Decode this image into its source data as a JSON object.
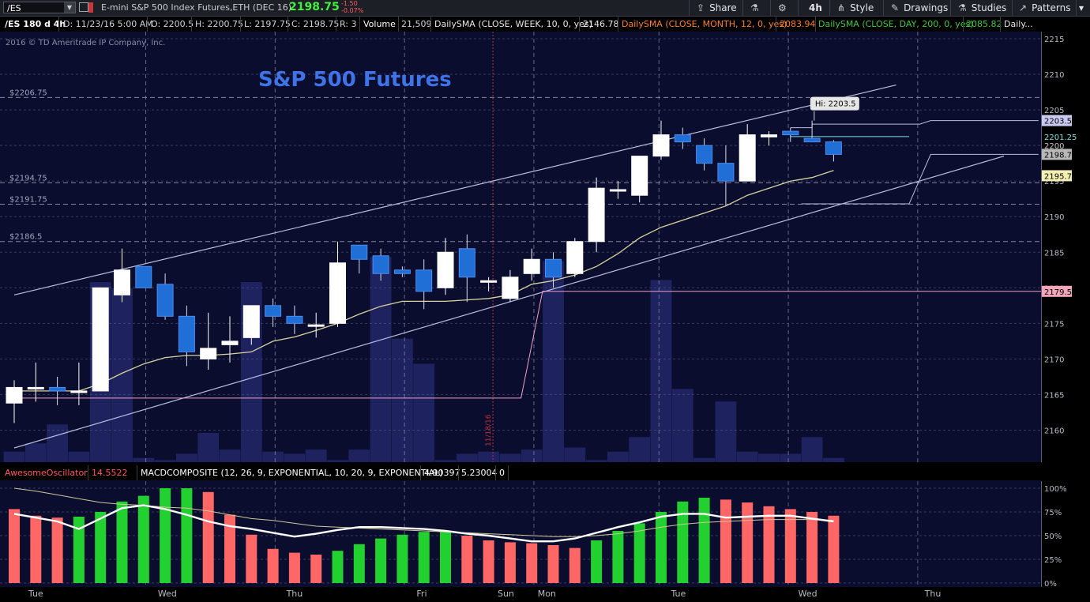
{
  "toolbar": {
    "symbol": "/ES",
    "description": "E-mini S&P 500 Index Futures,ETH (DEC 16)",
    "last": "2198.75",
    "change": "-1.50",
    "change_pct": "-0.07%",
    "share": "Share",
    "timeframe": "4h",
    "style": "Style",
    "drawings": "Drawings",
    "studies": "Studies",
    "patterns": "Patterns"
  },
  "infobar": {
    "chart_id": "/ES 180 d 4h",
    "date": "D: 11/23/16 5:00 AM",
    "open": "O: 2200.5",
    "high": "H: 2200.75",
    "low": "L: 2197.75",
    "close": "C: 2198.75",
    "range": "R: 3",
    "volume_label": "Volume",
    "volume_value": "21,509",
    "sma_week_label": "DailySMA (CLOSE, WEEK, 10, 0, yes)",
    "sma_week_value": "2146.78",
    "sma_month_label": "DailySMA (CLOSE, MONTH, 12, 0, yes)",
    "sma_month_value": "2083.94",
    "sma_day_label": "DailySMA (CLOSE, DAY, 200, 0, yes)",
    "sma_day_value": "2085.82",
    "more": "Daily..."
  },
  "colors": {
    "background": "#0b0d2e",
    "bull": "#ffffff",
    "bear": "#1f6fd6",
    "volume": "#1e2360",
    "sma_ma": "#d8d4a0",
    "channel": "#b9bde0",
    "pink_line": "#f0a0c8",
    "ao_up": "#22d030",
    "ao_down": "#ff6666",
    "grid": "#5b5f7c"
  },
  "chart_data": [
    {
      "type": "candlestick",
      "title": "S&P 500 Futures",
      "copyright": "2016 © TD Ameritrade IP Company, Inc.",
      "ylim": [
        2155.5,
        2216
      ],
      "y_ticks": [
        2160,
        2165,
        2170,
        2175,
        2180,
        2185,
        2190,
        2195,
        2200,
        2205,
        2210,
        2215
      ],
      "x_labels": [
        "Tue",
        "Wed",
        "Thu",
        "Fri",
        "Sun",
        "Mon",
        "Tue",
        "Wed",
        "Thu"
      ],
      "x_label_bars": [
        1.0,
        7.1,
        13.0,
        18.9,
        22.8,
        24.7,
        30.8,
        36.8,
        42.6
      ],
      "day_separators": [
        6.1,
        12.1,
        18.1,
        24.1,
        29.9,
        35.9,
        41.9
      ],
      "date_marker": {
        "label": "11/18/16",
        "bar": 22.2
      },
      "levels": [
        {
          "label": "$2206.75",
          "value": 2206.75
        },
        {
          "label": "$2194.75",
          "value": 2194.75
        },
        {
          "label": "$2191.75",
          "value": 2191.75
        },
        {
          "label": "$2186.5",
          "value": 2186.5
        }
      ],
      "price_tags": [
        {
          "label": "2203.5",
          "value": 2203.5,
          "bg": "#c9c9f2",
          "fg": "#000000"
        },
        {
          "label": "2201.25",
          "value": 2201.25,
          "bg": "#000000",
          "fg": "#7fe0e0"
        },
        {
          "label": "2200",
          "value": 2200.0,
          "bg": "#000000",
          "fg": "#c8c8c8"
        },
        {
          "label": "2198.75",
          "value": 2198.75,
          "bg": "#b8b8b8",
          "fg": "#000000"
        },
        {
          "label": "2195.75",
          "value": 2195.75,
          "bg": "#f4f0b4",
          "fg": "#000000"
        },
        {
          "label": "2179.5",
          "value": 2179.5,
          "bg": "#f2a7b9",
          "fg": "#000000"
        }
      ],
      "hi_label": {
        "text": "Hi: 2203.5",
        "bar": 37.1,
        "value": 2203.5
      },
      "candles": [
        {
          "o": 2163.8,
          "h": 2167.0,
          "l": 2161.0,
          "c": 2166.0
        },
        {
          "o": 2166.0,
          "h": 2169.5,
          "l": 2164.0,
          "c": 2166.0
        },
        {
          "o": 2166.0,
          "h": 2167.5,
          "l": 2163.5,
          "c": 2165.5
        },
        {
          "o": 2165.5,
          "h": 2169.5,
          "l": 2163.5,
          "c": 2165.5
        },
        {
          "o": 2165.5,
          "h": 2180.0,
          "l": 2165.5,
          "c": 2180.0
        },
        {
          "o": 2179.0,
          "h": 2185.5,
          "l": 2178.0,
          "c": 2182.5
        },
        {
          "o": 2183.0,
          "h": 2183.0,
          "l": 2180.0,
          "c": 2180.0
        },
        {
          "o": 2180.5,
          "h": 2182.0,
          "l": 2175.5,
          "c": 2176.0
        },
        {
          "o": 2176.0,
          "h": 2177.5,
          "l": 2169.0,
          "c": 2171.0
        },
        {
          "o": 2170.0,
          "h": 2176.5,
          "l": 2168.5,
          "c": 2171.5
        },
        {
          "o": 2172.0,
          "h": 2176.0,
          "l": 2169.5,
          "c": 2172.5
        },
        {
          "o": 2173.0,
          "h": 2177.5,
          "l": 2172.0,
          "c": 2177.5
        },
        {
          "o": 2177.5,
          "h": 2178.5,
          "l": 2174.5,
          "c": 2176.0
        },
        {
          "o": 2176.0,
          "h": 2177.5,
          "l": 2173.5,
          "c": 2175.0
        },
        {
          "o": 2174.8,
          "h": 2176.5,
          "l": 2173.0,
          "c": 2174.8
        },
        {
          "o": 2175.0,
          "h": 2186.5,
          "l": 2174.5,
          "c": 2183.5
        },
        {
          "o": 2186.0,
          "h": 2186.0,
          "l": 2182.0,
          "c": 2184.0
        },
        {
          "o": 2184.5,
          "h": 2185.5,
          "l": 2181.0,
          "c": 2182.0
        },
        {
          "o": 2182.5,
          "h": 2183.0,
          "l": 2181.5,
          "c": 2182.0
        },
        {
          "o": 2182.5,
          "h": 2184.0,
          "l": 2177.0,
          "c": 2179.5
        },
        {
          "o": 2180.0,
          "h": 2187.0,
          "l": 2179.0,
          "c": 2185.0
        },
        {
          "o": 2185.5,
          "h": 2187.5,
          "l": 2178.0,
          "c": 2181.5
        },
        {
          "o": 2181.0,
          "h": 2181.5,
          "l": 2179.5,
          "c": 2181.0
        },
        {
          "o": 2178.5,
          "h": 2182.5,
          "l": 2178.0,
          "c": 2181.5
        },
        {
          "o": 2182.0,
          "h": 2185.5,
          "l": 2181.0,
          "c": 2184.0
        },
        {
          "o": 2184.0,
          "h": 2185.0,
          "l": 2180.0,
          "c": 2181.5
        },
        {
          "o": 2182.0,
          "h": 2187.0,
          "l": 2181.5,
          "c": 2186.5
        },
        {
          "o": 2186.5,
          "h": 2195.5,
          "l": 2185.0,
          "c": 2194.0
        },
        {
          "o": 2193.8,
          "h": 2195.0,
          "l": 2192.5,
          "c": 2193.8
        },
        {
          "o": 2193.0,
          "h": 2198.5,
          "l": 2192.0,
          "c": 2198.5
        },
        {
          "o": 2198.5,
          "h": 2203.5,
          "l": 2198.0,
          "c": 2201.5
        },
        {
          "o": 2201.5,
          "h": 2202.5,
          "l": 2199.5,
          "c": 2200.5
        },
        {
          "o": 2200.0,
          "h": 2201.0,
          "l": 2196.5,
          "c": 2197.5
        },
        {
          "o": 2197.5,
          "h": 2200.0,
          "l": 2191.5,
          "c": 2195.0
        },
        {
          "o": 2195.0,
          "h": 2203.0,
          "l": 2195.0,
          "c": 2201.5
        },
        {
          "o": 2201.2,
          "h": 2202.0,
          "l": 2200.0,
          "c": 2201.5
        },
        {
          "o": 2202.0,
          "h": 2202.5,
          "l": 2200.5,
          "c": 2201.5
        },
        {
          "o": 2201.0,
          "h": 2203.5,
          "l": 2200.5,
          "c": 2200.5
        },
        {
          "o": 2200.5,
          "h": 2200.75,
          "l": 2197.75,
          "c": 2198.75
        }
      ],
      "volume": [
        0.05,
        0.09,
        0.18,
        0.05,
        0.86,
        0.83,
        0.02,
        0.01,
        0.04,
        0.14,
        0.06,
        0.86,
        0.05,
        0.04,
        0.06,
        0.01,
        0.06,
        0.98,
        0.59,
        0.47,
        0.01,
        0.04,
        0.05,
        0.04,
        0.06,
        0.96,
        0.07,
        0.01,
        0.05,
        0.12,
        0.87,
        0.35,
        0.02,
        0.29,
        0.05,
        0.04,
        0.04,
        0.12,
        0.02
      ],
      "sma": [
        2165.5,
        2165.5,
        2165.5,
        2165.5,
        2166.5,
        2168.0,
        2169.3,
        2170.2,
        2170.5,
        2170.5,
        2170.7,
        2171.0,
        2172.5,
        2173.1,
        2174.0,
        2175.0,
        2176.3,
        2177.4,
        2178.1,
        2178.1,
        2178.1,
        2178.3,
        2178.5,
        2179.0,
        2180.5,
        2181.0,
        2181.8,
        2183.0,
        2184.8,
        2187.0,
        2188.5,
        2189.5,
        2190.5,
        2191.5,
        2193.0,
        2194.0,
        2195.0,
        2195.5,
        2196.5
      ],
      "upper_channel": [
        {
          "bar": 0.0,
          "value": 2179.0
        },
        {
          "bar": 40.9,
          "value": 2208.5
        }
      ],
      "lower_channel": [
        {
          "bar": 0.0,
          "value": 2157.5
        },
        {
          "bar": 45.9,
          "value": 2198.5
        }
      ],
      "pink_line": [
        {
          "bar": 0.0,
          "value": 2164.5
        },
        {
          "bar": 23.5,
          "value": 2164.5
        },
        {
          "bar": 24.5,
          "value": 2179.5
        },
        {
          "bar": 48.0,
          "value": 2179.5
        }
      ],
      "lavender_high": [
        {
          "bar": 36.0,
          "value": 2202.5
        },
        {
          "bar": 37.0,
          "value": 2202.5
        },
        {
          "bar": 37.0,
          "value": 2203.0
        },
        {
          "bar": 42.0,
          "value": 2203.0
        },
        {
          "bar": 42.5,
          "value": 2203.5
        },
        {
          "bar": 47.5,
          "value": 2203.5
        }
      ],
      "teal_level": [
        {
          "bar": 36.0,
          "value": 2201.25
        },
        {
          "bar": 41.5,
          "value": 2201.25
        }
      ],
      "lavender_low": [
        {
          "bar": 36.5,
          "value": 2191.8
        },
        {
          "bar": 41.5,
          "value": 2191.8
        },
        {
          "bar": 42.5,
          "value": 2198.75
        },
        {
          "bar": 47.5,
          "value": 2198.75
        }
      ]
    },
    {
      "type": "bar",
      "ylim": [
        0,
        100
      ],
      "y_ticks": [
        0,
        25,
        50,
        75,
        100
      ],
      "y_tick_labels": [
        "0%",
        "25%",
        "50%",
        "75%",
        "100%"
      ],
      "ao_label": "AwesomeOscillator",
      "ao_value": "14.5522",
      "macd_label": "MACDCOMPOSITE (12, 26, 9, EXPONENTIAL, 10, 20, 9, EXPONENTIAL)",
      "macd_value1": "4.90397",
      "macd_value2": "5.23004",
      "macd_value3": "0",
      "ao_values": [
        78,
        71,
        69,
        70,
        75,
        86,
        92,
        100,
        100,
        96,
        72,
        51,
        36,
        32,
        30,
        34,
        41,
        47,
        51,
        54,
        54,
        50,
        45,
        43,
        42,
        40,
        37,
        45,
        55,
        63,
        75,
        86,
        90,
        88,
        85,
        81,
        78,
        75,
        71
      ],
      "ao_directions": [
        "down",
        "down",
        "down",
        "up",
        "up",
        "up",
        "up",
        "up",
        "up",
        "down",
        "down",
        "down",
        "down",
        "down",
        "down",
        "up",
        "up",
        "up",
        "up",
        "up",
        "up",
        "down",
        "down",
        "down",
        "down",
        "down",
        "down",
        "up",
        "up",
        "up",
        "up",
        "up",
        "up",
        "down",
        "down",
        "down",
        "down",
        "down",
        "down"
      ],
      "macd_line": [
        73,
        69,
        65,
        57,
        68,
        79,
        82,
        78,
        72,
        65,
        60,
        57,
        53,
        49,
        52,
        56,
        59,
        59,
        58,
        57,
        55,
        52,
        50,
        47,
        44,
        44,
        47,
        53,
        59,
        64,
        70,
        73,
        73,
        69,
        70,
        71,
        71,
        68,
        65
      ],
      "signal_line": [
        100,
        97,
        93,
        89,
        85,
        83,
        82,
        80,
        79,
        76,
        72,
        68,
        66,
        63,
        60,
        59,
        58,
        57,
        56,
        55,
        54,
        53,
        52,
        51,
        50,
        49,
        49,
        50,
        52,
        55,
        59,
        62,
        64,
        65,
        66,
        67,
        67,
        67,
        66
      ]
    }
  ]
}
